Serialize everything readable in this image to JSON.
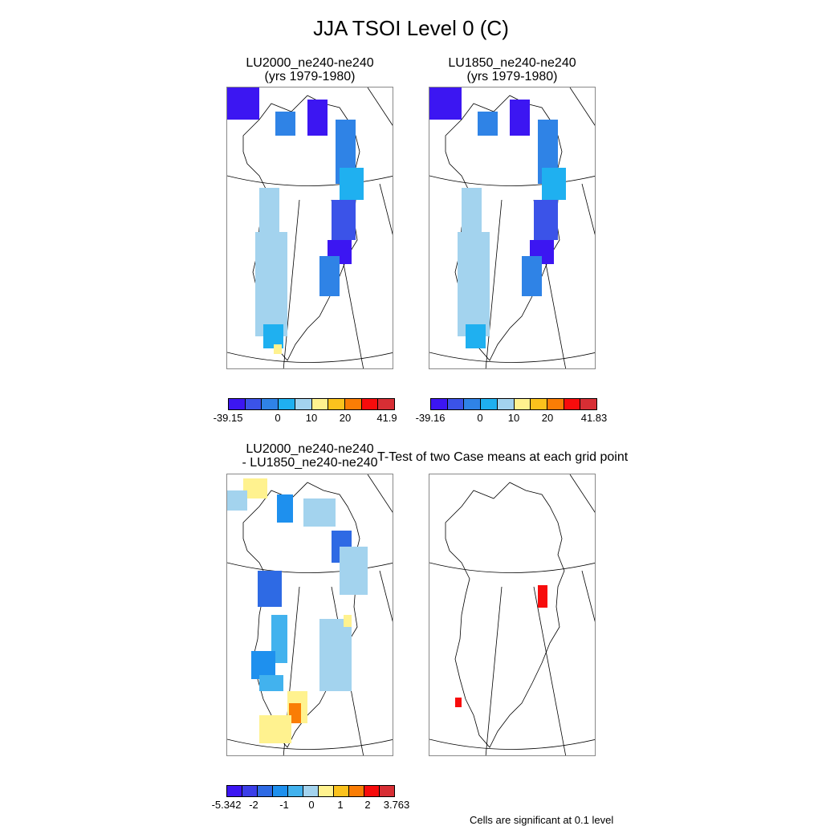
{
  "title": "JJA TSOI Level 0 (C)",
  "panels": [
    {
      "title_line1": "LU2000_ne240-ne240",
      "title_line2": "(yrs 1979-1980)"
    },
    {
      "title_line1": "LU1850_ne240-ne240",
      "title_line2": "(yrs 1979-1980)"
    },
    {
      "title_line1": "LU2000_ne240-ne240",
      "title_line2": "- LU1850_ne240-ne240"
    },
    {
      "title_line1": "T-Test of two Case means at each grid point",
      "title_line2": ""
    }
  ],
  "colorbars": [
    {
      "colors": [
        "#3c16f2",
        "#3b53e8",
        "#2f83e6",
        "#1fb0f0",
        "#a3d3ee",
        "#fff28f",
        "#fbc21d",
        "#fa7d05",
        "#f70c0c",
        "#d72e34"
      ],
      "labels": [
        "-39.15",
        "0",
        "10",
        "20",
        "41.9"
      ]
    },
    {
      "colors": [
        "#3c16f2",
        "#3b53e8",
        "#2f83e6",
        "#1fb0f0",
        "#a3d3ee",
        "#fff28f",
        "#fbc21d",
        "#fa7d05",
        "#f70c0c",
        "#d72e34"
      ],
      "labels": [
        "-39.16",
        "0",
        "10",
        "20",
        "41.83"
      ]
    },
    {
      "colors": [
        "#3c16f2",
        "#3b3ee8",
        "#2e6ae4",
        "#1e90ee",
        "#42b2ee",
        "#a3d3ee",
        "#fff28f",
        "#fbc21d",
        "#fa7d05",
        "#f70c0c",
        "#d72e34"
      ],
      "labels": [
        "-5.342",
        "-2",
        "-1",
        "0",
        "1",
        "2",
        "3.763"
      ]
    }
  ],
  "footnote": "Cells are significant at 0.1 level"
}
